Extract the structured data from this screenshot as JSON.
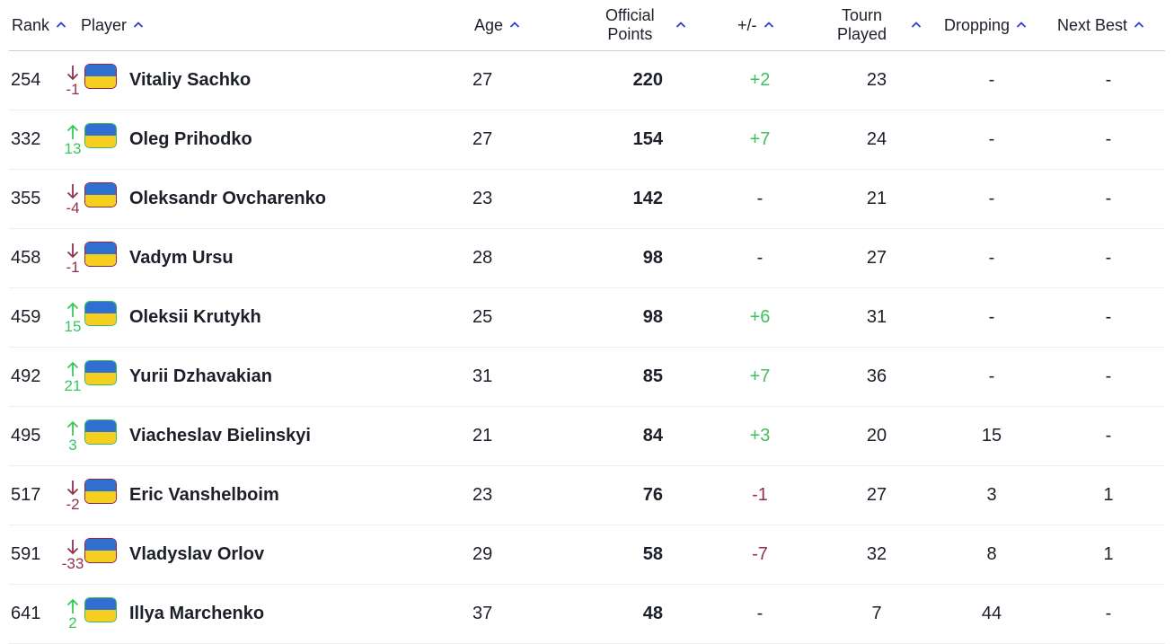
{
  "headers": {
    "rank": "Rank",
    "player": "Player",
    "age": "Age",
    "official_points_1": "Official",
    "official_points_2": "Points",
    "plus_minus": "+/-",
    "tourn_played_1": "Tourn",
    "tourn_played_2": "Played",
    "dropping": "Dropping",
    "next_best": "Next Best"
  },
  "colors": {
    "up": "#38c75a",
    "down": "#93304f",
    "caret": "#2a3bd1",
    "flag_blue": "#2f6fd0",
    "flag_yellow": "#f5cf1f"
  },
  "rows": [
    {
      "rank": "254",
      "move_dir": "down",
      "move": "-1",
      "flag": "ukraine-flag-icon",
      "player": "Vitaliy Sachko",
      "age": "27",
      "points": "220",
      "plus_minus": "+2",
      "pm_dir": "pos",
      "tourn_played": "23",
      "dropping": "-",
      "next_best": "-"
    },
    {
      "rank": "332",
      "move_dir": "up",
      "move": "13",
      "flag": "ukraine-flag-icon",
      "player": "Oleg Prihodko",
      "age": "27",
      "points": "154",
      "plus_minus": "+7",
      "pm_dir": "pos",
      "tourn_played": "24",
      "dropping": "-",
      "next_best": "-"
    },
    {
      "rank": "355",
      "move_dir": "down",
      "move": "-4",
      "flag": "ukraine-flag-icon",
      "player": "Oleksandr Ovcharenko",
      "age": "23",
      "points": "142",
      "plus_minus": "-",
      "pm_dir": "none",
      "tourn_played": "21",
      "dropping": "-",
      "next_best": "-"
    },
    {
      "rank": "458",
      "move_dir": "down",
      "move": "-1",
      "flag": "ukraine-flag-icon",
      "player": "Vadym Ursu",
      "age": "28",
      "points": "98",
      "plus_minus": "-",
      "pm_dir": "none",
      "tourn_played": "27",
      "dropping": "-",
      "next_best": "-"
    },
    {
      "rank": "459",
      "move_dir": "up",
      "move": "15",
      "flag": "ukraine-flag-icon",
      "player": "Oleksii Krutykh",
      "age": "25",
      "points": "98",
      "plus_minus": "+6",
      "pm_dir": "pos",
      "tourn_played": "31",
      "dropping": "-",
      "next_best": "-"
    },
    {
      "rank": "492",
      "move_dir": "up",
      "move": "21",
      "flag": "ukraine-flag-icon",
      "player": "Yurii Dzhavakian",
      "age": "31",
      "points": "85",
      "plus_minus": "+7",
      "pm_dir": "pos",
      "tourn_played": "36",
      "dropping": "-",
      "next_best": "-"
    },
    {
      "rank": "495",
      "move_dir": "up",
      "move": "3",
      "flag": "ukraine-flag-icon",
      "player": "Viacheslav Bielinskyi",
      "age": "21",
      "points": "84",
      "plus_minus": "+3",
      "pm_dir": "pos",
      "tourn_played": "20",
      "dropping": "15",
      "next_best": "-"
    },
    {
      "rank": "517",
      "move_dir": "down",
      "move": "-2",
      "flag": "ukraine-flag-icon",
      "player": "Eric Vanshelboim",
      "age": "23",
      "points": "76",
      "plus_minus": "-1",
      "pm_dir": "neg",
      "tourn_played": "27",
      "dropping": "3",
      "next_best": "1"
    },
    {
      "rank": "591",
      "move_dir": "down",
      "move": "-33",
      "flag": "ukraine-flag-icon",
      "player": "Vladyslav Orlov",
      "age": "29",
      "points": "58",
      "plus_minus": "-7",
      "pm_dir": "neg",
      "tourn_played": "32",
      "dropping": "8",
      "next_best": "1"
    },
    {
      "rank": "641",
      "move_dir": "up",
      "move": "2",
      "flag": "ukraine-flag-icon",
      "player": "Illya Marchenko",
      "age": "37",
      "points": "48",
      "plus_minus": "-",
      "pm_dir": "none",
      "tourn_played": "7",
      "dropping": "44",
      "next_best": "-"
    }
  ]
}
